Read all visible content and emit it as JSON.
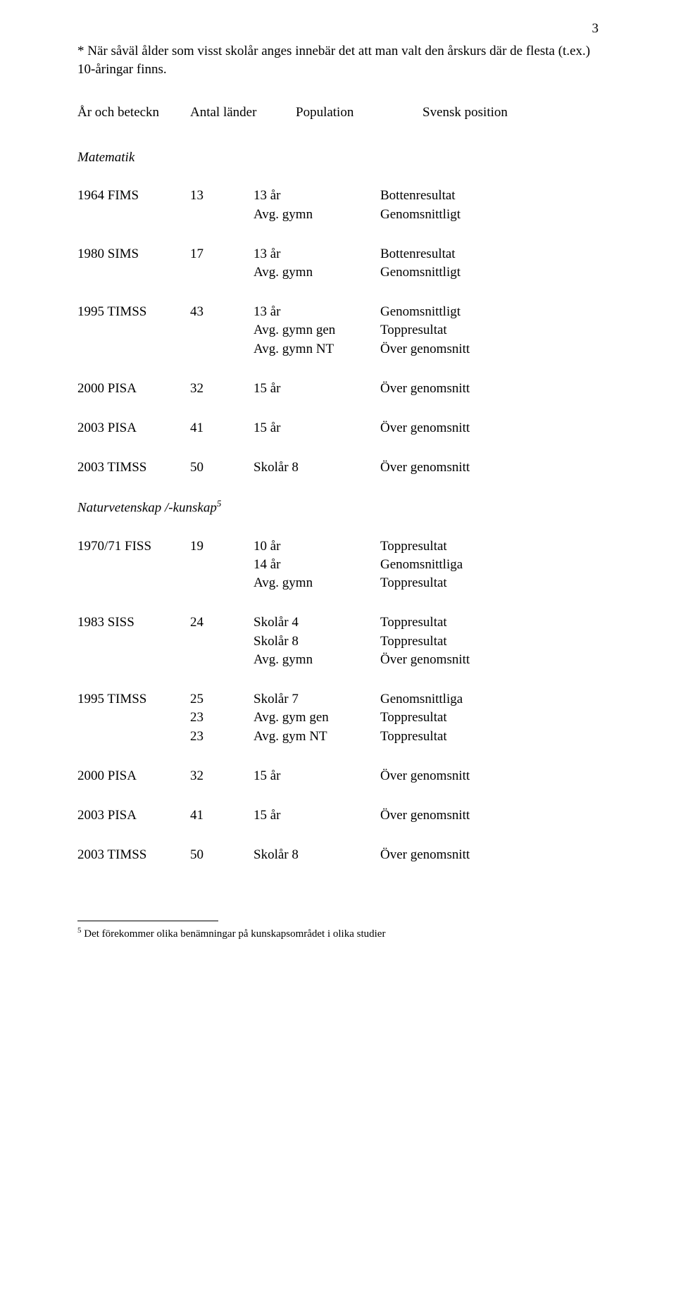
{
  "page_number": "3",
  "note": "* När såväl ålder som visst skolår anges innebär det att man valt den årskurs där de flesta (t.ex.) 10-åringar finns.",
  "header": {
    "col_a": "År och beteckn",
    "col_b": "Antal länder",
    "col_c": "Population",
    "col_d": "Svensk position"
  },
  "section1_title": "Matematik",
  "section1": [
    {
      "year_label": "1964  FIMS",
      "count": "13",
      "rows": [
        {
          "pop": "13 år",
          "pos": "Bottenresultat"
        },
        {
          "pop": "Avg. gymn",
          "pos": "Genomsnittligt"
        }
      ]
    },
    {
      "year_label": "1980  SIMS",
      "count": "17",
      "rows": [
        {
          "pop": "13 år",
          "pos": "Bottenresultat"
        },
        {
          "pop": "Avg. gymn",
          "pos": "Genomsnittligt"
        }
      ]
    },
    {
      "year_label": "1995  TIMSS",
      "count": " 43",
      "rows": [
        {
          "pop": "13 år",
          "pos": "Genomsnittligt"
        },
        {
          "pop": "Avg. gymn gen",
          "pos": "Toppresultat"
        },
        {
          "pop": "Avg. gymn NT",
          "pos": "Över genomsnitt"
        }
      ]
    },
    {
      "year_label": "2000  PISA",
      "count": "32",
      "rows": [
        {
          "pop": "15 år",
          "pos": "Över genomsnitt"
        }
      ]
    },
    {
      "year_label": "2003  PISA",
      "count": "41",
      "rows": [
        {
          "pop": "15 år",
          "pos": "Över genomsnitt"
        }
      ]
    },
    {
      "year_label": "2003  TIMSS",
      "count": "50",
      "rows": [
        {
          "pop": "Skolår 8",
          "pos": "Över genomsnitt"
        }
      ]
    }
  ],
  "section2_title_prefix": "Naturvetenskap /-kunskap",
  "section2_title_sup": "5",
  "section2": [
    {
      "year_label": "1970/71  FISS",
      "counts": [
        "19"
      ],
      "rows": [
        {
          "pop": "10 år",
          "pos": "Toppresultat"
        },
        {
          "pop": "14 år",
          "pos": "Genomsnittliga"
        },
        {
          "pop": "Avg. gymn",
          "pos": "Toppresultat"
        }
      ]
    },
    {
      "year_label": "1983 SISS",
      "counts": [
        "24"
      ],
      "rows": [
        {
          "pop": "Skolår 4",
          "pos": "Toppresultat"
        },
        {
          "pop": "Skolår 8",
          "pos": "Toppresultat"
        },
        {
          "pop": "Avg. gymn",
          "pos": "Över genomsnitt"
        }
      ]
    },
    {
      "year_label": "1995 TIMSS",
      "counts": [
        "25",
        "23",
        "23"
      ],
      "rows": [
        {
          "pop": "Skolår 7",
          "pos": "Genomsnittliga"
        },
        {
          "pop": "Avg. gym gen",
          "pos": "Toppresultat"
        },
        {
          "pop": "Avg. gym NT",
          "pos": "Toppresultat"
        }
      ]
    },
    {
      "year_label": "2000 PISA",
      "counts": [
        "32"
      ],
      "rows": [
        {
          "pop": "15 år",
          "pos": "Över genomsnitt"
        }
      ]
    },
    {
      "year_label": "2003 PISA",
      "counts": [
        "41"
      ],
      "rows": [
        {
          "pop": "15 år",
          "pos": "Över genomsnitt"
        }
      ]
    },
    {
      "year_label": "2003 TIMSS",
      "counts": [
        "50"
      ],
      "rows": [
        {
          "pop": " Skolår 8",
          "pos": "Över genomsnitt"
        }
      ]
    }
  ],
  "footnote_sup": "5",
  "footnote_text": " Det förekommer olika benämningar på kunskapsområdet i olika studier"
}
